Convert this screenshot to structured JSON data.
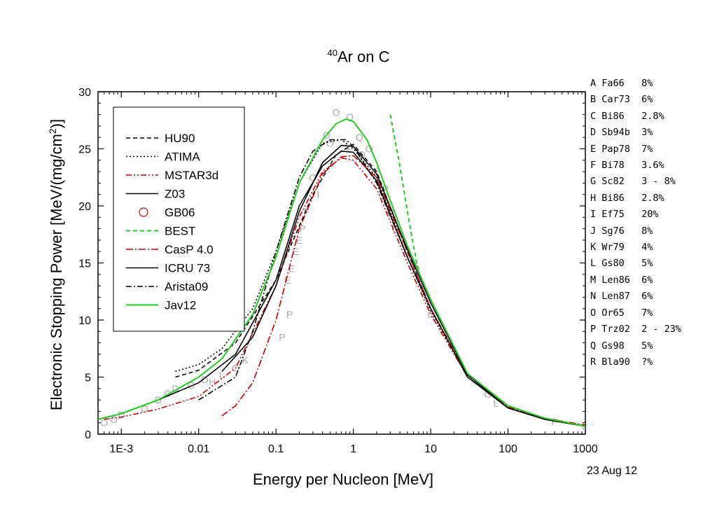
{
  "chart_data": {
    "type": "line",
    "title_sup": "40",
    "title_main": "Ar on C",
    "xlabel": "Energy per Nucleon [MeV]",
    "ylabel_main": "Electronic Stopping Power [MeV/(mg/cm",
    "ylabel_sup": "2",
    "ylabel_end": ")]",
    "x_scale": "log",
    "xlim": [
      0.0005,
      1000
    ],
    "ylim": [
      0,
      30
    ],
    "x_ticks": [
      "1E-3",
      "0.01",
      "0.1",
      "1",
      "10",
      "100",
      "1000"
    ],
    "y_ticks": [
      "0",
      "5",
      "10",
      "15",
      "20",
      "25",
      "30"
    ],
    "legend_position": "upper-left",
    "series": [
      {
        "name": "HU90",
        "color": "#000000",
        "dash": "6,4",
        "x": [
          0.005,
          0.01,
          0.03,
          0.1,
          0.3,
          0.6,
          1,
          2,
          5,
          10,
          30,
          100,
          300,
          1000
        ],
        "y": [
          5.0,
          5.6,
          8.0,
          13.5,
          21.0,
          24.5,
          25.4,
          23.0,
          16.0,
          11.0,
          5.0,
          2.3,
          1.3,
          0.7
        ]
      },
      {
        "name": "ATIMA",
        "color": "#000000",
        "dash": "2,3",
        "x": [
          0.005,
          0.01,
          0.02,
          0.05,
          0.1,
          0.2,
          0.4,
          0.7,
          1,
          2,
          5,
          10,
          30,
          100,
          300,
          1000
        ],
        "y": [
          5.5,
          6.1,
          7.5,
          11.0,
          16.0,
          22.0,
          25.5,
          25.8,
          25.0,
          22.5,
          15.5,
          10.8,
          5.0,
          2.3,
          1.3,
          0.7
        ]
      },
      {
        "name": "MSTAR3d",
        "color": "#cc0000",
        "dash": "8,3,2,3,2,3",
        "x": [
          0.0006,
          0.001,
          0.003,
          0.01,
          0.03,
          0.1,
          0.2,
          0.4,
          0.7,
          1,
          2,
          5,
          10,
          30,
          100,
          300,
          1000
        ],
        "y": [
          1.3,
          1.5,
          2.2,
          3.3,
          5.8,
          13.0,
          19.0,
          23.0,
          24.2,
          24.0,
          21.5,
          15.0,
          10.5,
          5.0,
          2.3,
          1.3,
          0.7
        ]
      },
      {
        "name": "Z03",
        "color": "#000000",
        "dash": "",
        "x": [
          0.0005,
          0.001,
          0.003,
          0.01,
          0.03,
          0.1,
          0.2,
          0.4,
          0.7,
          1,
          2,
          5,
          10,
          30,
          100,
          300,
          1000
        ],
        "y": [
          1.3,
          1.8,
          3.0,
          4.5,
          7.0,
          13.5,
          20.0,
          23.5,
          24.8,
          24.7,
          22.2,
          15.5,
          11.0,
          5.0,
          2.3,
          1.3,
          0.7
        ]
      },
      {
        "name": "GB06",
        "color": "#cc0000",
        "dash": "",
        "x": [],
        "y": []
      },
      {
        "name": "BEST",
        "color": "#22cc22",
        "dash": "6,4",
        "x": [
          3,
          4,
          5,
          6,
          7
        ],
        "y": [
          28.0,
          23.5,
          19.5,
          16.5,
          14.0
        ]
      },
      {
        "name": "CasP 4.0",
        "color": "#cc0000",
        "dash": "10,3,2,3",
        "x": [
          0.02,
          0.03,
          0.05,
          0.1,
          0.2,
          0.4,
          0.7,
          1,
          2,
          5,
          10,
          30,
          100,
          300,
          1000
        ],
        "y": [
          1.6,
          2.5,
          4.5,
          10.0,
          18.0,
          22.8,
          24.3,
          24.4,
          22.5,
          16.0,
          11.0,
          5.2,
          2.4,
          1.4,
          0.8
        ]
      },
      {
        "name": "ICRU 73",
        "color": "#000000",
        "dash": "",
        "x": [
          0.02,
          0.05,
          0.1,
          0.2,
          0.4,
          0.7,
          1,
          2,
          5,
          10,
          30,
          100,
          300,
          1000
        ],
        "y": [
          5.5,
          8.5,
          13.0,
          19.5,
          23.8,
          25.3,
          25.2,
          22.8,
          16.2,
          11.5,
          5.2,
          2.3,
          1.3,
          0.7
        ]
      },
      {
        "name": "Arista09",
        "color": "#000000",
        "dash": "8,3,2,3",
        "x": [
          0.01,
          0.03,
          0.05,
          0.1,
          0.2,
          0.3,
          0.5,
          0.8,
          1,
          2,
          5,
          10,
          30,
          100,
          300,
          1000
        ],
        "y": [
          3.0,
          5.0,
          9.0,
          16.0,
          22.5,
          24.8,
          25.8,
          25.8,
          25.2,
          22.0,
          15.5,
          11.0,
          5.0,
          2.3,
          1.3,
          0.7
        ]
      },
      {
        "name": "Jav12",
        "color": "#22cc22",
        "dash": "",
        "x": [
          0.0005,
          0.001,
          0.003,
          0.01,
          0.02,
          0.05,
          0.1,
          0.2,
          0.4,
          0.6,
          0.8,
          1,
          1.5,
          2,
          3,
          5,
          10,
          30,
          100,
          300,
          1000
        ],
        "y": [
          1.3,
          1.8,
          3.0,
          5.0,
          6.6,
          10.5,
          15.5,
          22.0,
          25.8,
          27.2,
          27.6,
          27.4,
          25.8,
          23.8,
          20.5,
          16.5,
          11.8,
          5.3,
          2.5,
          1.4,
          0.7
        ]
      }
    ],
    "experimental_labels": [
      {
        "code": "O",
        "x": 0.6,
        "y": 28.2
      },
      {
        "code": "O",
        "x": 0.9,
        "y": 27.8
      },
      {
        "code": "O",
        "x": 0.45,
        "y": 26.2
      },
      {
        "code": "O",
        "x": 0.5,
        "y": 25.5
      },
      {
        "code": "Q",
        "x": 1.2,
        "y": 26.0
      },
      {
        "code": "O",
        "x": 1.6,
        "y": 25.0
      },
      {
        "code": "O",
        "x": 0.3,
        "y": 22.5
      },
      {
        "code": "I",
        "x": 0.35,
        "y": 21.0
      },
      {
        "code": "F",
        "x": 0.25,
        "y": 19.5
      },
      {
        "code": "P",
        "x": 0.22,
        "y": 18.0
      },
      {
        "code": "E",
        "x": 0.2,
        "y": 17.0
      },
      {
        "code": "E",
        "x": 0.18,
        "y": 16.0
      },
      {
        "code": "E",
        "x": 0.16,
        "y": 14.5
      },
      {
        "code": "E",
        "x": 0.14,
        "y": 13.5
      },
      {
        "code": "P",
        "x": 0.15,
        "y": 10.5
      },
      {
        "code": "P",
        "x": 0.12,
        "y": 8.5
      },
      {
        "code": "F",
        "x": 0.9,
        "y": 25.0
      },
      {
        "code": "D",
        "x": 1.3,
        "y": 24.5
      },
      {
        "code": "P",
        "x": 2.0,
        "y": 23.0
      },
      {
        "code": "P",
        "x": 2.6,
        "y": 21.5
      },
      {
        "code": "O",
        "x": 3.0,
        "y": 19.5
      },
      {
        "code": "O",
        "x": 3.5,
        "y": 18.0
      },
      {
        "code": "O",
        "x": 5.0,
        "y": 16.0
      },
      {
        "code": "O",
        "x": 6.5,
        "y": 14.5
      },
      {
        "code": "C",
        "x": 10,
        "y": 10.5
      },
      {
        "code": "G",
        "x": 55,
        "y": 3.5
      },
      {
        "code": "L",
        "x": 70,
        "y": 2.7
      },
      {
        "code": "P",
        "x": 400,
        "y": 1.1
      },
      {
        "code": "D",
        "x": 1000,
        "y": 0.7
      },
      {
        "code": "O",
        "x": 0.0006,
        "y": 1.0
      },
      {
        "code": "O",
        "x": 0.0008,
        "y": 1.3
      },
      {
        "code": "D",
        "x": 0.001,
        "y": 1.7
      },
      {
        "code": "O",
        "x": 0.002,
        "y": 2.2
      },
      {
        "code": "D",
        "x": 0.003,
        "y": 3.0
      },
      {
        "code": "O",
        "x": 0.004,
        "y": 3.6
      },
      {
        "code": "D",
        "x": 0.005,
        "y": 4.0
      },
      {
        "code": "O",
        "x": 0.008,
        "y": 4.3
      },
      {
        "code": "D",
        "x": 0.012,
        "y": 4.8
      },
      {
        "code": "H",
        "x": 0.015,
        "y": 4.6
      },
      {
        "code": "L",
        "x": 0.02,
        "y": 5.2
      },
      {
        "code": "O",
        "x": 0.03,
        "y": 5.8
      },
      {
        "code": "K",
        "x": 0.04,
        "y": 6.5
      }
    ]
  },
  "references": [
    "A Fa66   8%",
    "B Car73  6%",
    "C Bi86   2.8%",
    "D Sb94b  3%",
    "E Pap78  7%",
    "F Bi78   3.6%",
    "G Sc82   3 - 8%",
    "H Bi86   2.8%",
    "I Ef75   20%",
    "J Sg76   8%",
    "K Wr79   4%",
    "L Gs80   5%",
    "M Len86  6%",
    "N Len87  6%",
    "O Or65   7%",
    "P Trz02  2 - 23%",
    "Q Gs98   5%",
    "R Bla90  ?%"
  ],
  "date": "23 Aug 12"
}
